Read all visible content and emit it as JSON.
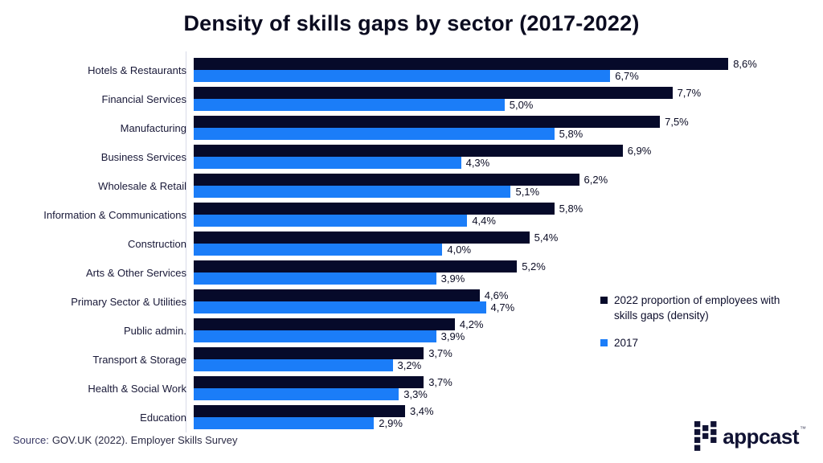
{
  "source": {
    "prefix": "Source:",
    "text": "GOV.UK (2022). Employer Skills Survey"
  },
  "logo": {
    "text": "appcast",
    "tm": "™"
  },
  "chart_data": {
    "type": "bar",
    "orientation": "horizontal",
    "title": "Density of skills gaps by sector (2017-2022)",
    "categories": [
      "Hotels & Restaurants",
      "Financial Services",
      "Manufacturing",
      "Business Services",
      "Wholesale & Retail",
      "Information & Communications",
      "Construction",
      "Arts & Other Services",
      "Primary Sector & Utilities",
      "Public admin.",
      "Transport & Storage",
      "Health & Social Work",
      "Education"
    ],
    "series": [
      {
        "name": "2022 proportion of employees with skills gaps (density)",
        "color": "#060a2a",
        "values": [
          8.6,
          7.7,
          7.5,
          6.9,
          6.2,
          5.8,
          5.4,
          5.2,
          4.6,
          4.2,
          3.7,
          3.7,
          3.4
        ],
        "labels": [
          "8,6%",
          "7,7%",
          "7,5%",
          "6,9%",
          "6,2%",
          "5,8%",
          "5,4%",
          "5,2%",
          "4,6%",
          "4,2%",
          "3,7%",
          "3,7%",
          "3,4%"
        ]
      },
      {
        "name": "2017",
        "color": "#1b7df8",
        "values": [
          6.7,
          5.0,
          5.8,
          4.3,
          5.1,
          4.4,
          4.0,
          3.9,
          4.7,
          3.9,
          3.2,
          3.3,
          2.9
        ],
        "labels": [
          "6,7%",
          "5,0%",
          "5,8%",
          "4,3%",
          "5,1%",
          "4,4%",
          "4,0%",
          "3,9%",
          "4,7%",
          "3,9%",
          "3,2%",
          "3,3%",
          "2,9%"
        ]
      }
    ],
    "value_suffix": "%",
    "decimal_separator": ",",
    "xlim": [
      0,
      9.05
    ],
    "grid": false,
    "legend_position": "right-middle"
  }
}
